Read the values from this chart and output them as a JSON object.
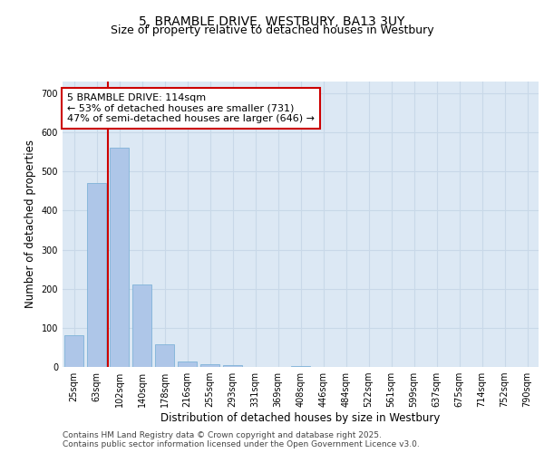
{
  "title": "5, BRAMBLE DRIVE, WESTBURY, BA13 3UY",
  "subtitle": "Size of property relative to detached houses in Westbury",
  "xlabel": "Distribution of detached houses by size in Westbury",
  "ylabel": "Number of detached properties",
  "categories": [
    "25sqm",
    "63sqm",
    "102sqm",
    "140sqm",
    "178sqm",
    "216sqm",
    "255sqm",
    "293sqm",
    "331sqm",
    "369sqm",
    "408sqm",
    "446sqm",
    "484sqm",
    "522sqm",
    "561sqm",
    "599sqm",
    "637sqm",
    "675sqm",
    "714sqm",
    "752sqm",
    "790sqm"
  ],
  "bar_values": [
    80,
    470,
    560,
    210,
    57,
    15,
    8,
    5,
    0,
    0,
    3,
    0,
    0,
    0,
    0,
    0,
    0,
    0,
    0,
    0,
    0
  ],
  "bar_color": "#aec6e8",
  "bar_edgecolor": "#7fb3d8",
  "vline_x": 1.5,
  "vline_color": "#cc0000",
  "annotation_text": "5 BRAMBLE DRIVE: 114sqm\n← 53% of detached houses are smaller (731)\n47% of semi-detached houses are larger (646) →",
  "annotation_box_color": "#ffffff",
  "annotation_box_edgecolor": "#cc0000",
  "ylim": [
    0,
    730
  ],
  "yticks": [
    0,
    100,
    200,
    300,
    400,
    500,
    600,
    700
  ],
  "grid_color": "#c8d8e8",
  "background_color": "#dce8f4",
  "footer_text": "Contains HM Land Registry data © Crown copyright and database right 2025.\nContains public sector information licensed under the Open Government Licence v3.0.",
  "title_fontsize": 10,
  "subtitle_fontsize": 9,
  "axis_label_fontsize": 8.5,
  "tick_fontsize": 7,
  "annotation_fontsize": 8,
  "footer_fontsize": 6.5
}
